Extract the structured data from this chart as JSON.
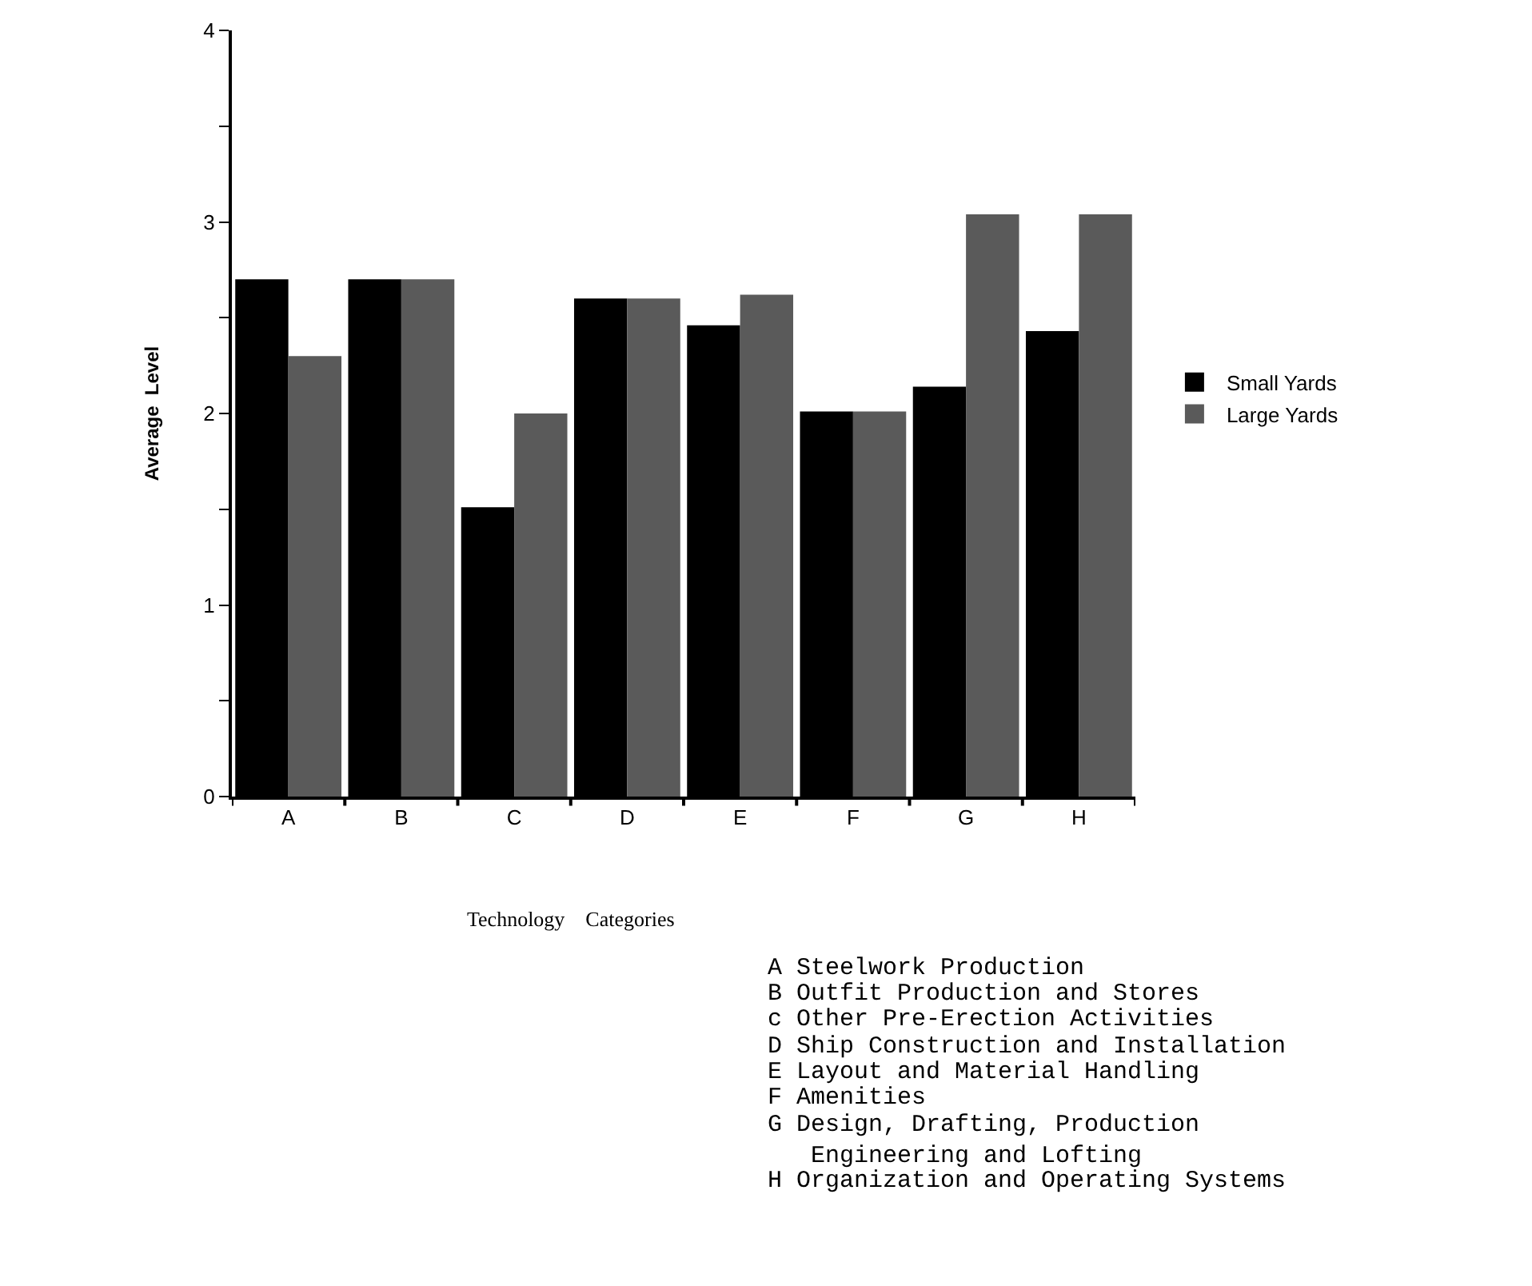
{
  "chart_data": {
    "type": "bar",
    "xlabel": "Technology    Categories",
    "ylabel": "Average  Level",
    "categories": [
      "A",
      "B",
      "C",
      "D",
      "E",
      "F",
      "G",
      "H"
    ],
    "series": [
      {
        "name": "Small Yards",
        "color": "#000000",
        "values": [
          2.7,
          2.7,
          1.51,
          2.6,
          2.46,
          2.01,
          2.14,
          2.43
        ]
      },
      {
        "name": "Large Yards",
        "color": "#5a5a5a",
        "values": [
          2.3,
          2.7,
          2.0,
          2.6,
          2.62,
          2.01,
          3.04,
          3.04
        ]
      }
    ],
    "ylim": [
      0,
      4
    ],
    "yticks": [
      0,
      {
        "value": 0.5,
        "label": null
      },
      1,
      {
        "value": 1.5,
        "label": null
      },
      2,
      {
        "value": 2.5,
        "label": null
      },
      3,
      {
        "value": 3.5,
        "label": null
      },
      4
    ],
    "legend": "right",
    "annotations": [
      "A Steelwork Production",
      "B Outfit Production and Stores",
      "c Other Pre-Erection Activities",
      "D Ship Construction and Installation",
      "E Layout and Material Handling",
      "F Amenities",
      "G Design, Drafting, Production\n   Engineering and Lofting",
      "H Organization and Operating Systems"
    ]
  }
}
